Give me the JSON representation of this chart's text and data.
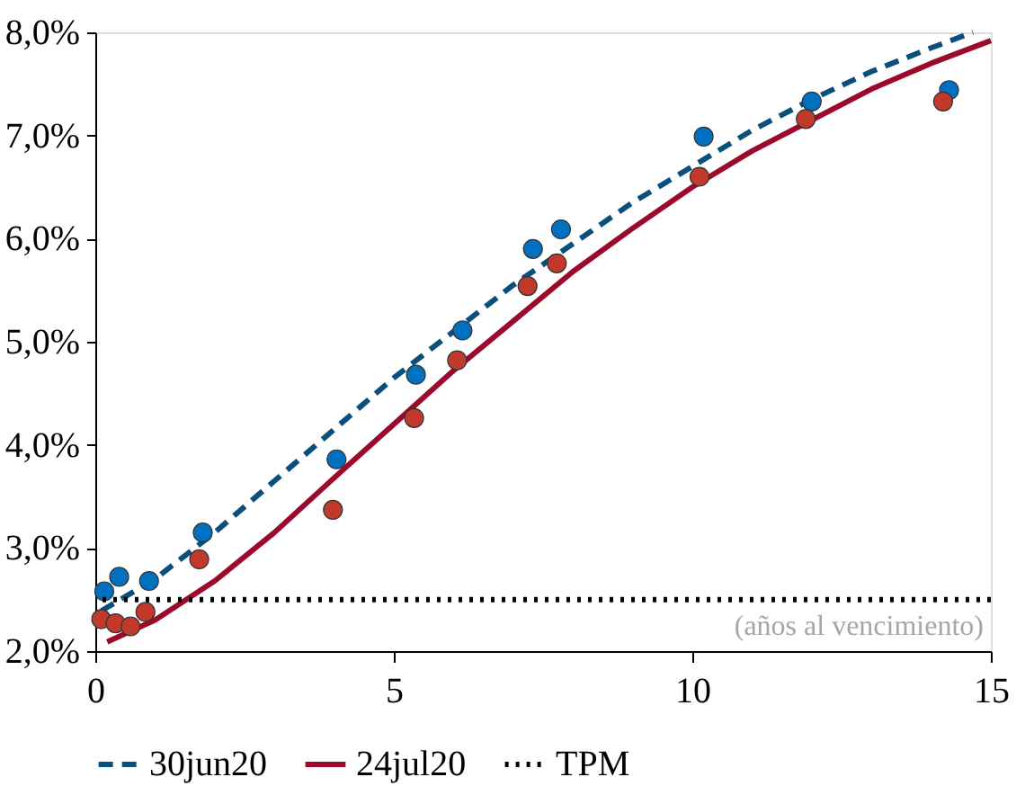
{
  "chart_data": {
    "type": "scatter",
    "xlim": [
      0,
      15
    ],
    "xticks": [
      0,
      5,
      10,
      15
    ],
    "ylim": [
      2,
      8
    ],
    "yticks": [
      {
        "value": 2,
        "label": "2,0%"
      },
      {
        "value": 3,
        "label": "3,0%"
      },
      {
        "value": 4,
        "label": "4,0%"
      },
      {
        "value": 5,
        "label": "5,0%"
      },
      {
        "value": 6,
        "label": "6,0%"
      },
      {
        "value": 7,
        "label": "7,0%"
      },
      {
        "value": 8,
        "label": "8,0%"
      }
    ],
    "grid": false,
    "legend": "bottom",
    "annotations": [
      "(años al vencimiento)"
    ],
    "series": [
      {
        "color": "#0070c0",
        "x": [
          0.15,
          0.4,
          0.9,
          1.8,
          4.04,
          5.37,
          6.15,
          7.33,
          7.8,
          10.19,
          12.0,
          14.3
        ],
        "values": [
          2.58,
          2.72,
          2.68,
          3.15,
          3.86,
          4.68,
          5.11,
          5.9,
          6.09,
          6.99,
          7.33,
          7.44
        ]
      },
      {
        "color": "#c0392b",
        "x": [
          0.1,
          0.34,
          0.59,
          0.84,
          1.74,
          3.98,
          5.34,
          6.06,
          7.24,
          7.73,
          10.12,
          11.9,
          14.2
        ],
        "values": [
          2.31,
          2.27,
          2.24,
          2.38,
          2.89,
          3.37,
          4.26,
          4.82,
          5.54,
          5.76,
          6.6,
          7.16,
          7.33
        ]
      },
      {
        "name": "30jun20",
        "type": "line",
        "line_style": "dashed",
        "color": "#0b4f7c",
        "x": [
          0.1,
          1,
          2,
          3,
          4,
          5,
          6,
          7,
          8,
          9,
          10,
          11,
          12,
          13,
          14,
          14.7
        ],
        "values": [
          2.39,
          2.7,
          3.15,
          3.65,
          4.15,
          4.65,
          5.1,
          5.55,
          5.95,
          6.35,
          6.7,
          7.05,
          7.35,
          7.62,
          7.85,
          8.0
        ]
      },
      {
        "name": "24jul20",
        "type": "line",
        "line_style": "solid",
        "color": "#9b0a2a",
        "x": [
          0.2,
          1,
          2,
          3,
          4,
          5,
          6,
          7,
          8,
          9,
          10,
          11,
          12,
          13,
          14,
          15
        ],
        "values": [
          2.09,
          2.3,
          2.68,
          3.15,
          3.68,
          4.2,
          4.72,
          5.2,
          5.68,
          6.1,
          6.5,
          6.85,
          7.15,
          7.45,
          7.7,
          7.92
        ]
      }
    ],
    "ref_lines": [
      {
        "axis": "y",
        "value": 2.5,
        "label": "TPM",
        "color": "#000000",
        "line_style": "dotted"
      }
    ]
  }
}
